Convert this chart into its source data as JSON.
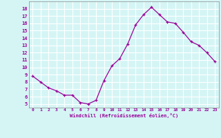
{
  "hours": [
    0,
    1,
    2,
    3,
    4,
    5,
    6,
    7,
    8,
    9,
    10,
    11,
    12,
    13,
    14,
    15,
    16,
    17,
    18,
    19,
    20,
    21,
    22,
    23
  ],
  "values": [
    8.8,
    8.0,
    7.2,
    6.8,
    6.2,
    6.2,
    5.2,
    5.0,
    5.5,
    8.2,
    10.2,
    11.2,
    13.2,
    15.8,
    17.2,
    18.2,
    17.2,
    16.2,
    16.0,
    14.8,
    13.5,
    13.0,
    12.0,
    10.8
  ],
  "xlabel": "Windchill (Refroidissement éolien,°C)",
  "line_color": "#990099",
  "marker_color": "#990099",
  "bg_color": "#d5f5f5",
  "grid_color": "#ffffff",
  "tick_color": "#990099",
  "label_color": "#990099",
  "ylim": [
    4.5,
    19.0
  ],
  "yticks": [
    5,
    6,
    7,
    8,
    9,
    10,
    11,
    12,
    13,
    14,
    15,
    16,
    17,
    18
  ],
  "xticks": [
    0,
    1,
    2,
    3,
    4,
    5,
    6,
    7,
    8,
    9,
    10,
    11,
    12,
    13,
    14,
    15,
    16,
    17,
    18,
    19,
    20,
    21,
    22,
    23
  ],
  "xtick_labels": [
    "0",
    "1",
    "2",
    "3",
    "4",
    "5",
    "6",
    "7",
    "8",
    "9",
    "10",
    "11",
    "12",
    "13",
    "14",
    "15",
    "16",
    "17",
    "18",
    "19",
    "20",
    "21",
    "22",
    "23"
  ]
}
